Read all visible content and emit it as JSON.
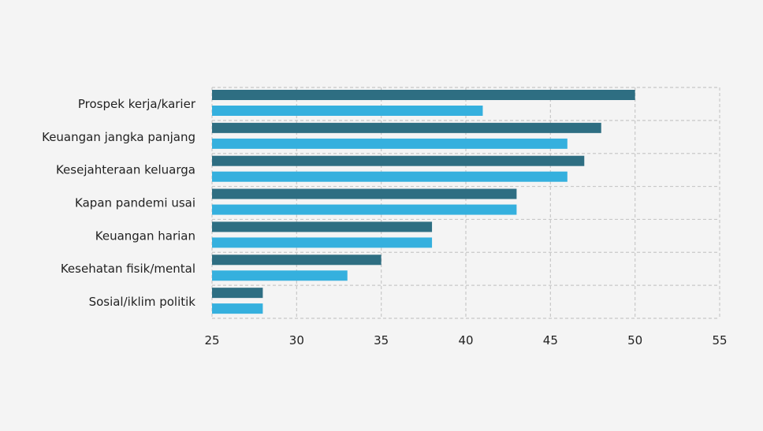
{
  "chart_data": {
    "type": "bar",
    "orientation": "horizontal",
    "categories": [
      "Prospek kerja/karier",
      "Keuangan jangka panjang",
      "Kesejahteraan keluarga",
      "Kapan pandemi usai",
      "Keuangan harian",
      "Kesehatan fisik/mental",
      "Sosial/iklim politik"
    ],
    "series": [
      {
        "color": "#2e6e82",
        "values": [
          50,
          48,
          47,
          43,
          38,
          35,
          28
        ]
      },
      {
        "color": "#35b0de",
        "values": [
          41,
          46,
          46,
          43,
          38,
          33,
          28
        ]
      }
    ],
    "xlim": [
      25,
      55
    ],
    "xticks": [
      "25",
      "30",
      "35",
      "40",
      "45",
      "50",
      "55"
    ],
    "title": "",
    "xlabel": "",
    "ylabel": "",
    "grid": true,
    "legend": "none"
  }
}
